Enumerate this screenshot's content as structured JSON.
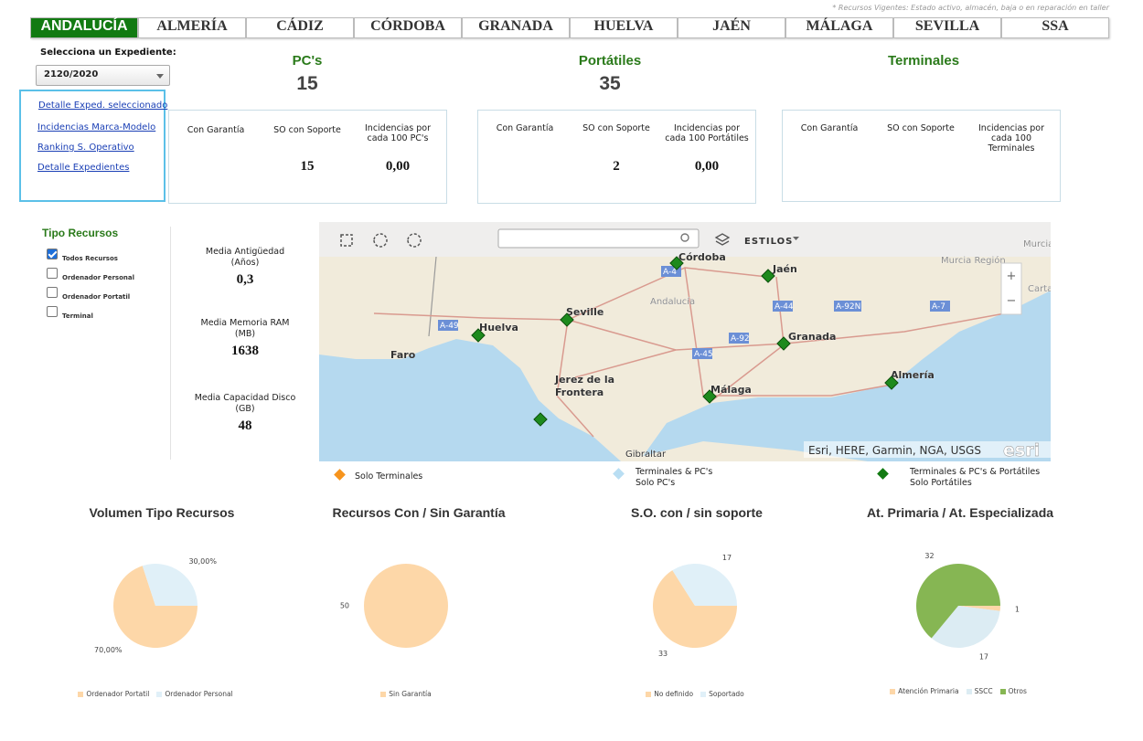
{
  "note": "* Recursos Vigentes: Estado activo, almacén, baja o en reparación en taller",
  "tabs": [
    "ANDALUCÍA",
    "ALMERÍA",
    "CÁDIZ",
    "CÓRDOBA",
    "GRANADA",
    "HUELVA",
    "JAÉN",
    "MÁLAGA",
    "SEVILLA",
    "SSA"
  ],
  "sidebar": {
    "select_label": "Selecciona un Expediente:",
    "selected": "2120/2020",
    "links": [
      "Detalle Exped. seleccionado",
      "Incidencias Marca-Modelo",
      "Ranking S. Operativo",
      "Detalle Expedientes"
    ]
  },
  "kpis": [
    {
      "title": "PC's",
      "total": 15,
      "columns": [
        "Con Garantía",
        "SO con Soporte",
        "Incidencias por cada 100 PC's"
      ],
      "figures": [
        null,
        15,
        "0,00"
      ]
    },
    {
      "title": "Portátiles",
      "total": 35,
      "columns": [
        "Con Garantía",
        "SO con Soporte",
        "Incidencias por cada 100 Portátiles"
      ],
      "figures": [
        null,
        2,
        "0,00"
      ]
    },
    {
      "title": "Terminales",
      "total": null,
      "columns": [
        "Con Garantía",
        "SO con Soporte",
        "Incidencias por cada 100 Terminales"
      ],
      "figures": [
        null,
        null,
        null
      ]
    }
  ],
  "resource_filter": {
    "title": "Tipo Recursos",
    "options": [
      {
        "label": "Todos Recursos",
        "checked": true
      },
      {
        "label": "Ordenador Personal",
        "checked": false
      },
      {
        "label": "Ordenador Portatil",
        "checked": false
      },
      {
        "label": "Terminal",
        "checked": false
      }
    ]
  },
  "averages": [
    {
      "label": "Media Antigüedad",
      "unit": "(Años)",
      "value": "0,3"
    },
    {
      "label": "Media Memoria RAM",
      "unit": "(MB)",
      "value": 1638
    },
    {
      "label": "Media Capacidad Disco",
      "unit": "(GB)",
      "value": 48
    }
  ],
  "map": {
    "styles_button": "ESTILOS",
    "places": [
      "Córdoba",
      "Jaén",
      "Andalucía",
      "Seville",
      "Huelva",
      "Faro",
      "Granada",
      "Jerez de la",
      "Frontera",
      "Málaga",
      "Almería",
      "Gibraltar",
      "Murcia Región",
      "Carta",
      "Murcia"
    ],
    "roads": [
      "A-4",
      "A-44",
      "A-92N",
      "A-7",
      "A-49",
      "A-92",
      "A-45"
    ],
    "attribution": "Esri, HERE, Garmin, NGA, USGS",
    "logo": "esri",
    "zoom": [
      "+",
      "−"
    ]
  },
  "map_legend": [
    {
      "lines": [
        "Solo Terminales"
      ],
      "color": "#f7941d"
    },
    {
      "lines": [
        "Terminales & PC's",
        "Solo PC's"
      ],
      "color": "#b9def3"
    },
    {
      "lines": [
        "Terminales & PC's & Portátiles",
        "Solo Portátiles"
      ],
      "color": "#127a12"
    }
  ],
  "charts": [
    {
      "type": "pie",
      "title": "Volumen Tipo Recursos",
      "categories": [
        "Ordenador Portatil",
        "Ordenador Personal"
      ],
      "values": [
        70,
        30
      ],
      "value_labels": [
        "70,00%",
        "30,00%"
      ],
      "colors": [
        "#fdd7a8",
        "#e0f0f8"
      ]
    },
    {
      "type": "pie",
      "title": "Recursos Con / Sin Garantía",
      "categories": [
        "Sin Garantía"
      ],
      "values": [
        50
      ],
      "colors": [
        "#fdd7a8"
      ]
    },
    {
      "type": "pie",
      "title": "S.O. con / sin soporte",
      "categories": [
        "No definido",
        "Soportado"
      ],
      "values": [
        33,
        17
      ],
      "colors": [
        "#fdd7a8",
        "#e0f0f8"
      ]
    },
    {
      "type": "pie",
      "title": "At. Primaria / At. Especializada",
      "categories": [
        "Atención Primaria",
        "SSCC",
        "Otros"
      ],
      "values": [
        1,
        17,
        32
      ],
      "colors": [
        "#fdd7a8",
        "#dcecf3",
        "#86b653"
      ]
    }
  ]
}
